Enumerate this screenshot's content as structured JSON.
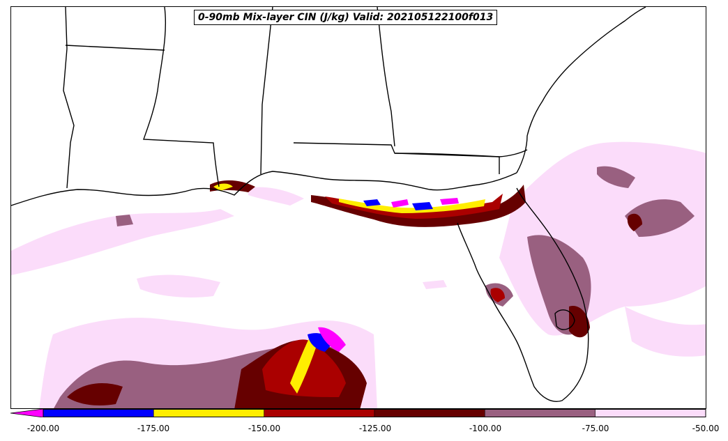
{
  "title": "0-90mb Mix-layer CIN (J/kg) Valid: 202105122100f013",
  "colorbar": {
    "ticks": [
      "-200.00",
      "-175.00",
      "-150.00",
      "-125.00",
      "-100.00",
      "-75.00",
      "-50.00"
    ],
    "levels": [
      -200,
      -175,
      -150,
      -125,
      -100,
      -75,
      -50
    ],
    "colors": [
      "#0000ff",
      "#ffee00",
      "#aa0000",
      "#660000",
      "#996080",
      "#fbdcfa"
    ],
    "under_color": "#ff00ff"
  },
  "field_colors": {
    "very_light": "#fbdcfa",
    "light_mauve": "#996080",
    "dark_red": "#660000",
    "red": "#aa0000",
    "yellow": "#ffee00",
    "blue": "#0000ff",
    "magenta": "#ff00ff"
  }
}
